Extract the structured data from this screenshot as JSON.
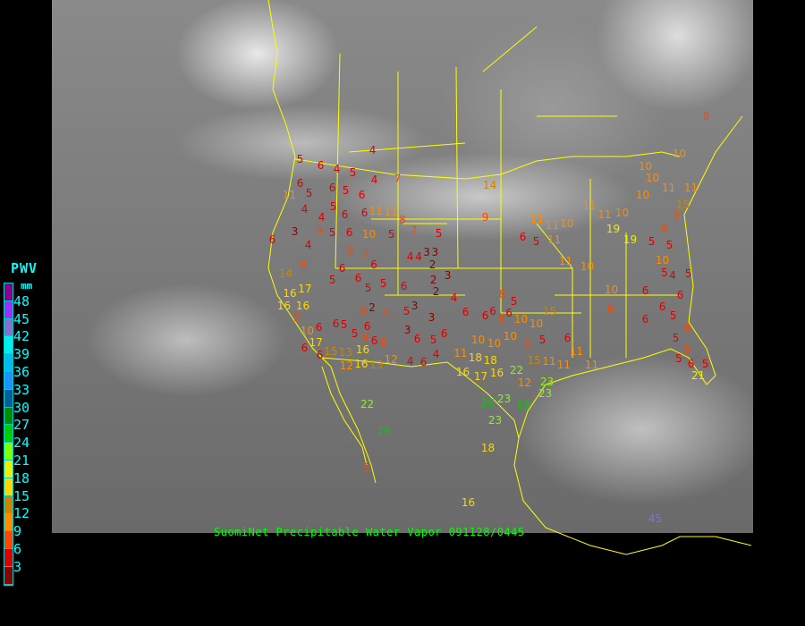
{
  "caption": "SuomiNet Precipitable Water Vapor 091128/0445",
  "legend": {
    "title": "PWV",
    "unit": "mm",
    "segments": [
      {
        "label": "48",
        "color": "#8b008b"
      },
      {
        "label": "45",
        "color": "#9932ff"
      },
      {
        "label": "42",
        "color": "#8470d0"
      },
      {
        "label": "39",
        "color": "#00eeee"
      },
      {
        "label": "36",
        "color": "#00bbee"
      },
      {
        "label": "33",
        "color": "#1e90ff"
      },
      {
        "label": "30",
        "color": "#00609a"
      },
      {
        "label": "27",
        "color": "#008b00"
      },
      {
        "label": "24",
        "color": "#00cd00"
      },
      {
        "label": "21",
        "color": "#7fff00"
      },
      {
        "label": "18",
        "color": "#eeee00"
      },
      {
        "label": "15",
        "color": "#ffd700"
      },
      {
        "label": "12",
        "color": "#cd8500"
      },
      {
        "label": "9",
        "color": "#ff8c00"
      },
      {
        "label": "6",
        "color": "#ff4500"
      },
      {
        "label": "3",
        "color": "#dd0000"
      },
      {
        "label": "",
        "color": "#8b0000"
      }
    ]
  },
  "map_line_color": "#ffff00",
  "stations": [
    4,
    5,
    6,
    4,
    5,
    4,
    7,
    6,
    11,
    5,
    6,
    5,
    6,
    4,
    5,
    4,
    6,
    6,
    11,
    11,
    8,
    7,
    5,
    14,
    9,
    3,
    4,
    9,
    5,
    6,
    10,
    5,
    6,
    9,
    14,
    6,
    9,
    7,
    6,
    4,
    4,
    3,
    3,
    2,
    3,
    2,
    2,
    4,
    3,
    3,
    5,
    6,
    5,
    5,
    6,
    5,
    17,
    16,
    16,
    16,
    9,
    6,
    6,
    5,
    5,
    6,
    9,
    6,
    8,
    2,
    8,
    8,
    3,
    6,
    5,
    6,
    10,
    17,
    6,
    6,
    15,
    13,
    16,
    16,
    13,
    12,
    12,
    4,
    6,
    4,
    6,
    6,
    6,
    8,
    5,
    6,
    9,
    10,
    10,
    15,
    10,
    10,
    9,
    5,
    10,
    11,
    18,
    18,
    16,
    16,
    22,
    17,
    12,
    15,
    11,
    11,
    11,
    11,
    23,
    23,
    26,
    23,
    26,
    23,
    18,
    16,
    22,
    26,
    9,
    5,
    6,
    11,
    10,
    11,
    11,
    11,
    11,
    10,
    19,
    19,
    5,
    9,
    7,
    5,
    15,
    8,
    10,
    11,
    11,
    10,
    10,
    10,
    11,
    10,
    10,
    8,
    6,
    6,
    5,
    6,
    5,
    4,
    5,
    10,
    6,
    6,
    8,
    5,
    8,
    5,
    6,
    5,
    21,
    45
  ]
}
